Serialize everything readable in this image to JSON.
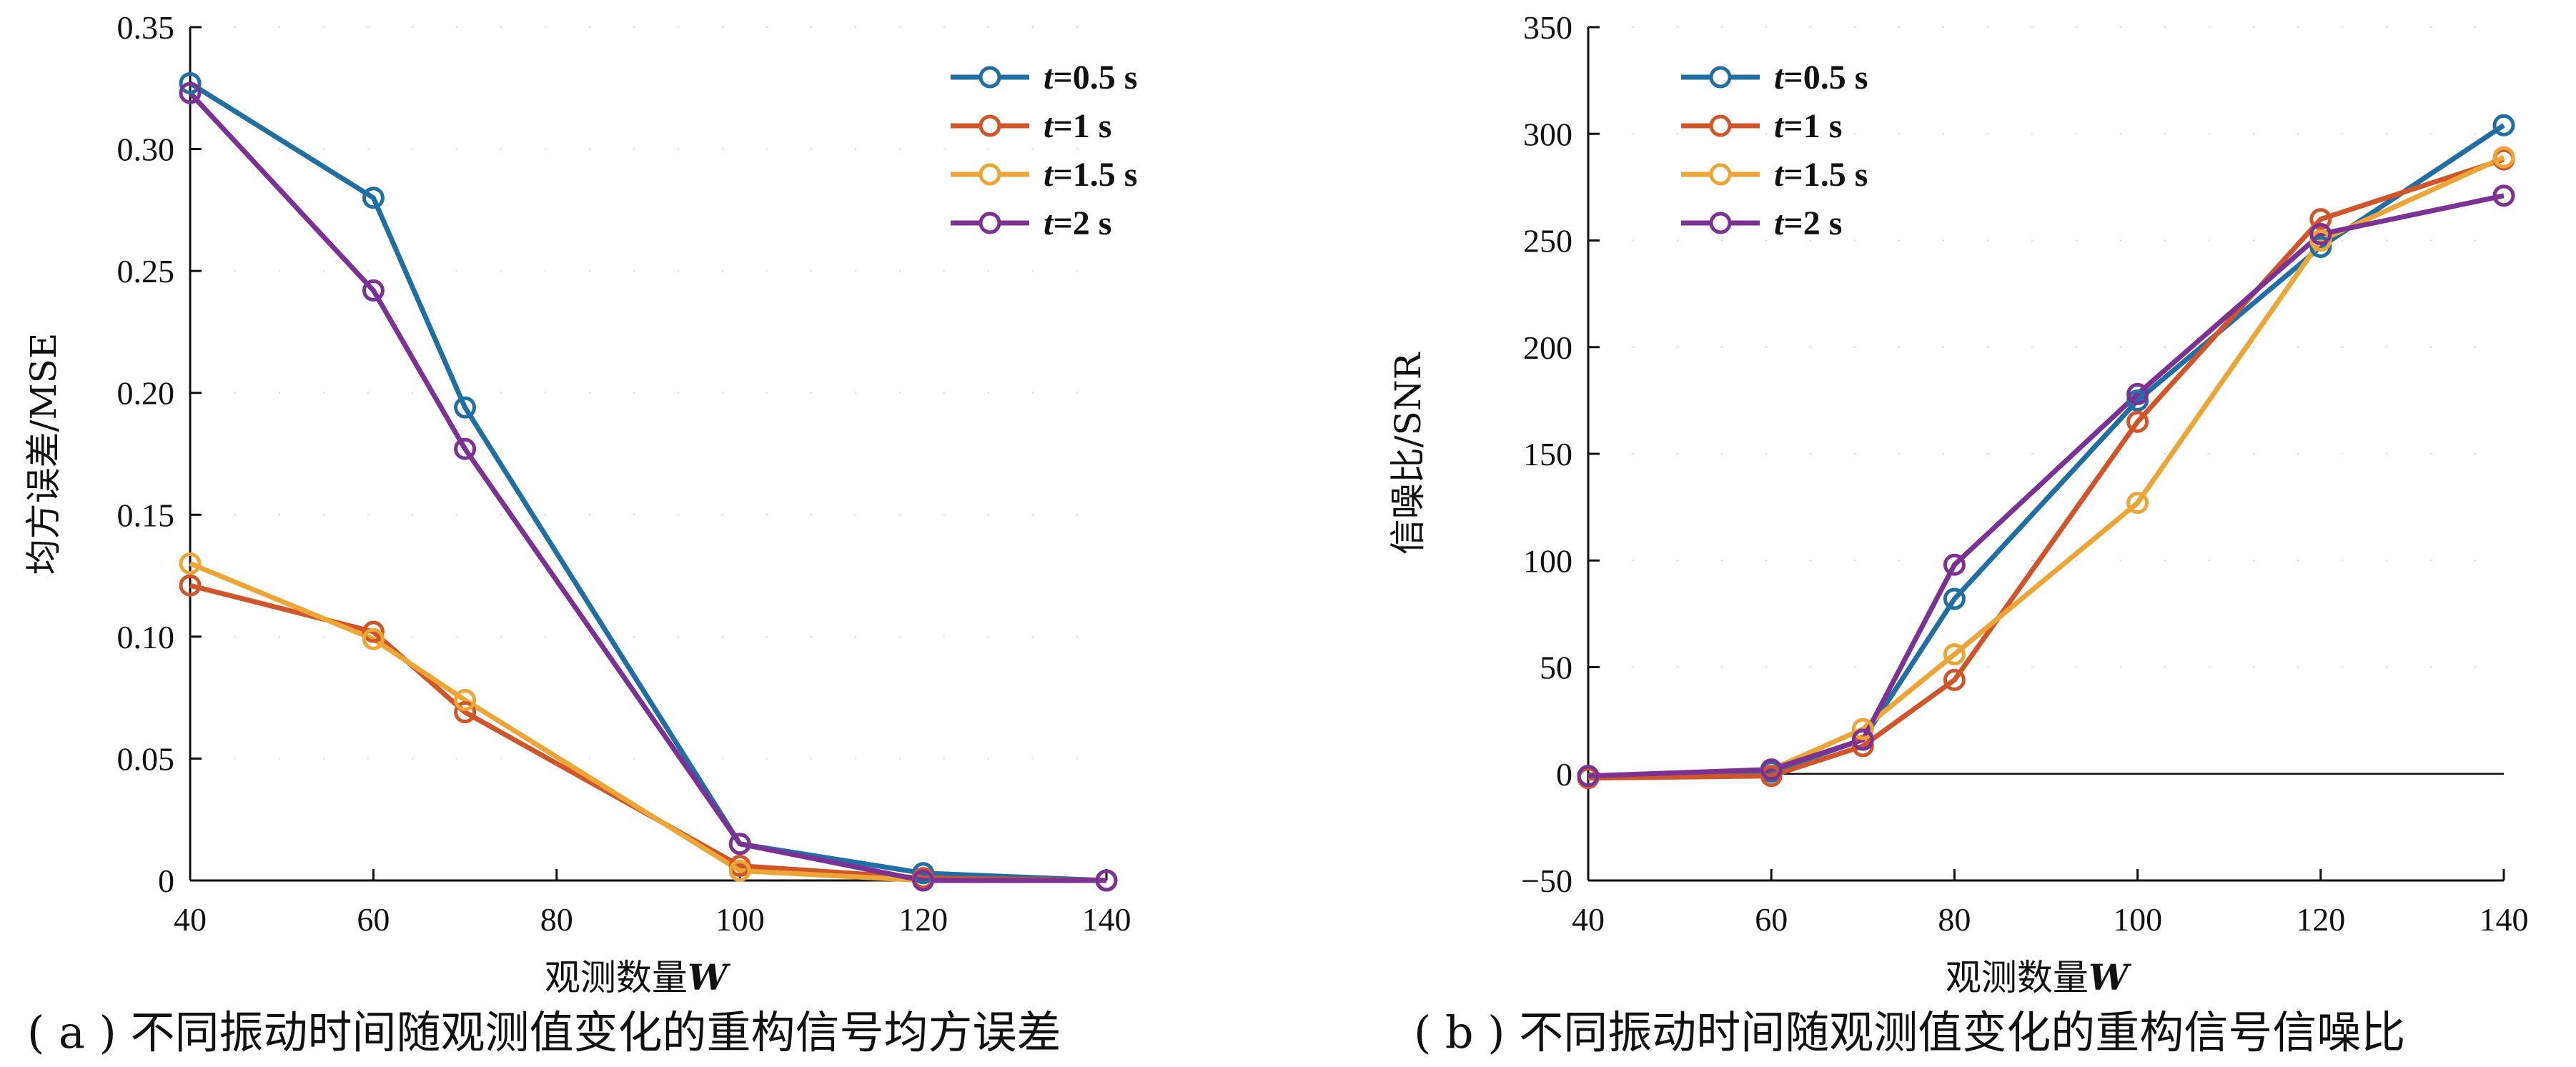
{
  "chart_data": [
    {
      "type": "line",
      "title": "",
      "caption": "( a ) 不同振动时间随观测值变化的重构信号均方误差",
      "xlabel": "观测数量",
      "xlabel_var": "W",
      "ylabel": "均方误差/MSE",
      "x": [
        40,
        60,
        70,
        80,
        100,
        120,
        140
      ],
      "xticks": [
        40,
        60,
        80,
        100,
        120,
        140
      ],
      "xtick_labels": [
        "40",
        "60",
        "80",
        "100",
        "120",
        "140"
      ],
      "xlim": [
        40,
        140
      ],
      "ylim": [
        0,
        0.35
      ],
      "yticks": [
        0,
        0.05,
        0.1,
        0.15,
        0.2,
        0.25,
        0.3,
        0.35
      ],
      "ytick_labels": [
        "0",
        "0.05",
        "0.10",
        "0.15",
        "0.20",
        "0.25",
        "0.30",
        "0.35"
      ],
      "legend": "top-right",
      "series": [
        {
          "name": "t=0.5 s",
          "var": "t",
          "rest": "=0.5 s",
          "color": "#1f6fa4",
          "x": [
            40,
            60,
            70,
            100,
            120,
            140
          ],
          "values": [
            0.327,
            0.28,
            0.194,
            0.015,
            0.003,
            0.0
          ]
        },
        {
          "name": "t=1 s",
          "var": "t",
          "rest": "=1 s",
          "color": "#d2552a",
          "x": [
            40,
            60,
            70,
            100,
            120,
            140
          ],
          "values": [
            0.121,
            0.102,
            0.069,
            0.006,
            0.001,
            0.0
          ]
        },
        {
          "name": "t=1.5 s",
          "var": "t",
          "rest": "=1.5 s",
          "color": "#eda535",
          "x": [
            40,
            60,
            70,
            100,
            120,
            140
          ],
          "values": [
            0.13,
            0.099,
            0.074,
            0.004,
            0.0,
            0.0
          ]
        },
        {
          "name": "t=2 s",
          "var": "t",
          "rest": "=2 s",
          "color": "#7b3294",
          "x": [
            40,
            60,
            70,
            100,
            120,
            140
          ],
          "values": [
            0.323,
            0.242,
            0.177,
            0.015,
            0.0,
            0.0
          ]
        }
      ]
    },
    {
      "type": "line",
      "title": "",
      "caption": "( b ) 不同振动时间随观测值变化的重构信号信噪比",
      "xlabel": "观测数量",
      "xlabel_var": "W",
      "ylabel": "信噪比/SNR",
      "xticks": [
        40,
        60,
        80,
        100,
        120,
        140
      ],
      "xtick_labels": [
        "40",
        "60",
        "80",
        "100",
        "120",
        "140"
      ],
      "xlim": [
        40,
        140
      ],
      "ylim": [
        -50,
        350
      ],
      "yticks": [
        -50,
        0,
        50,
        100,
        150,
        200,
        250,
        300,
        350
      ],
      "ytick_labels": [
        "−50",
        "0",
        "50",
        "100",
        "150",
        "200",
        "250",
        "300",
        "350"
      ],
      "legend": "top-left",
      "series": [
        {
          "name": "t=0.5 s",
          "var": "t",
          "rest": "=0.5 s",
          "color": "#1f6fa4",
          "x": [
            40,
            60,
            70,
            80,
            100,
            120,
            140
          ],
          "values": [
            -1,
            1,
            16,
            82,
            175,
            247,
            304
          ]
        },
        {
          "name": "t=1 s",
          "var": "t",
          "rest": "=1 s",
          "color": "#d2552a",
          "x": [
            40,
            60,
            70,
            80,
            100,
            120,
            140
          ],
          "values": [
            -2,
            -1,
            13,
            44,
            165,
            260,
            288
          ]
        },
        {
          "name": "t=1.5 s",
          "var": "t",
          "rest": "=1.5 s",
          "color": "#eda535",
          "x": [
            40,
            60,
            70,
            80,
            100,
            120,
            140
          ],
          "values": [
            -1,
            2,
            21,
            56,
            127,
            250,
            289
          ]
        },
        {
          "name": "t=2 s",
          "var": "t",
          "rest": "=2 s",
          "color": "#7b3294",
          "x": [
            40,
            60,
            70,
            80,
            100,
            120,
            140
          ],
          "values": [
            -1,
            2,
            16,
            98,
            178,
            253,
            271
          ]
        }
      ]
    }
  ]
}
